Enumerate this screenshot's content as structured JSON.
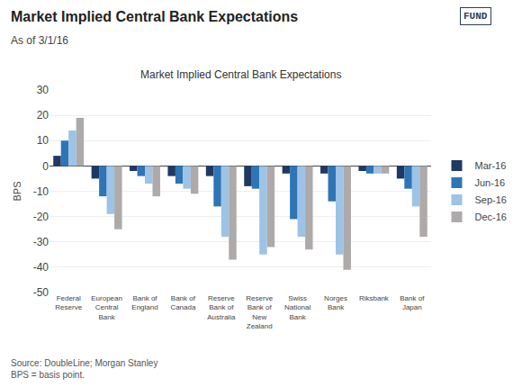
{
  "chart_data": {
    "type": "bar",
    "title": "Market Implied Central Bank Expectations",
    "subtitle": "As of 3/1/16",
    "annotations": [
      "Market Implied Central Bank Expectations",
      "Source: DoubleLine; Morgan Stanley\nBPS = basis point.",
      "FUND"
    ],
    "ylabel": "BPS",
    "categories": [
      "Federal\nReserve",
      "European\nCentral\nBank",
      "Bank of\nEngland",
      "Bank of\nCanada",
      "Reserve\nBank of\nAustralia",
      "Reserve\nBank of\nNew\nZealand",
      "Swiss\nNational\nBank",
      "Norges\nBank",
      "Riksbank",
      "Bank of\nJapan"
    ],
    "series": [
      {
        "name": "Mar-16",
        "color": "#1F3864",
        "values": [
          4,
          -5,
          -2,
          -4,
          -4,
          -8,
          -3,
          -3,
          -2,
          -5
        ]
      },
      {
        "name": "Jun-16",
        "color": "#2E75B6",
        "values": [
          10,
          -12,
          -4,
          -7,
          -16,
          -9,
          -21,
          -14,
          -3,
          -9
        ]
      },
      {
        "name": "Sep-16",
        "color": "#9DC3E6",
        "values": [
          14,
          -19,
          -7,
          -9,
          -28,
          -35,
          -28,
          -35,
          -3,
          -16
        ]
      },
      {
        "name": "Dec-16",
        "color": "#AEAAAA",
        "values": [
          19,
          -25,
          -12,
          -11,
          -37,
          -32,
          -33,
          -41,
          -3,
          -28
        ]
      }
    ],
    "ylim": [
      -50,
      30
    ],
    "yticks": [
      -50,
      -40,
      -30,
      -20,
      -10,
      0,
      10,
      20,
      30
    ],
    "grid": true,
    "legend": "right"
  }
}
